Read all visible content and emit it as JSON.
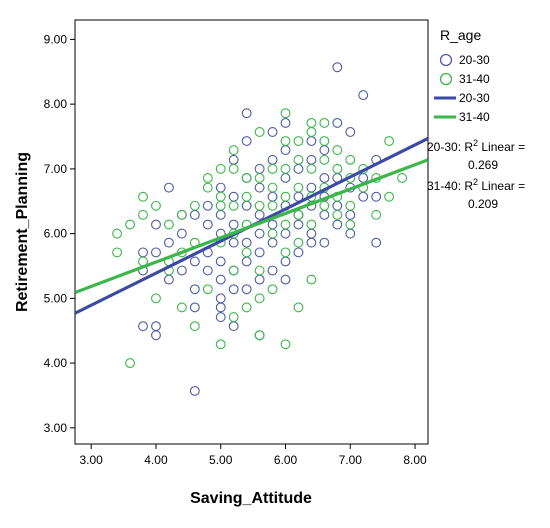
{
  "chart_data": {
    "type": "scatter",
    "xlabel": "Saving_Attitude",
    "ylabel": "Retirement_Planning",
    "xlim": [
      2.75,
      8.2
    ],
    "ylim": [
      2.75,
      9.3
    ],
    "xticks": [
      "3.00",
      "4.00",
      "5.00",
      "6.00",
      "7.00",
      "8.00"
    ],
    "yticks": [
      "3.00",
      "4.00",
      "5.00",
      "6.00",
      "7.00",
      "8.00",
      "9.00"
    ],
    "xtick_values": [
      3,
      4,
      5,
      6,
      7,
      8
    ],
    "ytick_values": [
      3,
      4,
      5,
      6,
      7,
      8,
      9
    ],
    "grid": false,
    "legend_position": "right",
    "legend": {
      "title": "R_age",
      "entries": [
        {
          "label": "20-30",
          "kind": "marker",
          "color": "#4e5ba6"
        },
        {
          "label": "31-40",
          "kind": "marker",
          "color": "#3cb64a"
        },
        {
          "label": "20-30",
          "kind": "line",
          "color": "#3d4aa3"
        },
        {
          "label": "31-40",
          "kind": "line",
          "color": "#3cb64a"
        }
      ],
      "annotations": [
        {
          "group": "20-30",
          "prefix": "20-30: R",
          "sup": "2",
          "suffix": " Linear =",
          "value": "0.269"
        },
        {
          "group": "31-40",
          "prefix": "31-40: R",
          "sup": "2",
          "suffix": " Linear =",
          "value": "0.209"
        }
      ]
    },
    "series": [
      {
        "name": "20-30",
        "color": "#4e5ba6",
        "marker": "open-circle",
        "points": [
          [
            3.8,
            5.43
          ],
          [
            3.8,
            4.57
          ],
          [
            3.8,
            5.71
          ],
          [
            4.0,
            4.43
          ],
          [
            4.0,
            4.57
          ],
          [
            4.0,
            5.71
          ],
          [
            4.0,
            6.14
          ],
          [
            4.2,
            5.29
          ],
          [
            4.2,
            5.86
          ],
          [
            4.2,
            6.71
          ],
          [
            4.4,
            5.43
          ],
          [
            4.4,
            6.0
          ],
          [
            4.4,
            6.29
          ],
          [
            4.6,
            4.86
          ],
          [
            4.6,
            5.14
          ],
          [
            4.6,
            5.57
          ],
          [
            4.6,
            6.29
          ],
          [
            4.6,
            3.57
          ],
          [
            4.8,
            5.43
          ],
          [
            4.8,
            5.71
          ],
          [
            4.8,
            6.14
          ],
          [
            4.8,
            6.43
          ],
          [
            5.0,
            4.71
          ],
          [
            5.0,
            5.0
          ],
          [
            5.0,
            5.29
          ],
          [
            5.0,
            5.57
          ],
          [
            5.0,
            6.0
          ],
          [
            5.0,
            6.29
          ],
          [
            5.0,
            6.71
          ],
          [
            5.0,
            4.86
          ],
          [
            5.2,
            5.14
          ],
          [
            5.2,
            5.43
          ],
          [
            5.2,
            5.86
          ],
          [
            5.2,
            6.14
          ],
          [
            5.2,
            6.57
          ],
          [
            5.2,
            7.14
          ],
          [
            5.2,
            4.57
          ],
          [
            5.4,
            5.57
          ],
          [
            5.4,
            5.86
          ],
          [
            5.4,
            6.43
          ],
          [
            5.4,
            7.43
          ],
          [
            5.4,
            7.86
          ],
          [
            5.4,
            5.14
          ],
          [
            5.4,
            6.86
          ],
          [
            5.6,
            4.43
          ],
          [
            5.6,
            5.29
          ],
          [
            5.6,
            6.0
          ],
          [
            5.6,
            6.29
          ],
          [
            5.6,
            6.71
          ],
          [
            5.6,
            7.0
          ],
          [
            5.6,
            5.71
          ],
          [
            5.8,
            5.43
          ],
          [
            5.8,
            6.14
          ],
          [
            5.8,
            6.57
          ],
          [
            5.8,
            7.14
          ],
          [
            5.8,
            7.57
          ],
          [
            5.8,
            5.86
          ],
          [
            6.0,
            5.57
          ],
          [
            6.0,
            6.0
          ],
          [
            6.0,
            6.43
          ],
          [
            6.0,
            6.86
          ],
          [
            6.0,
            7.29
          ],
          [
            6.0,
            7.71
          ],
          [
            6.0,
            5.29
          ],
          [
            6.2,
            5.71
          ],
          [
            6.2,
            6.14
          ],
          [
            6.2,
            6.57
          ],
          [
            6.2,
            7.0
          ],
          [
            6.2,
            6.29
          ],
          [
            6.4,
            6.0
          ],
          [
            6.4,
            6.43
          ],
          [
            6.4,
            6.71
          ],
          [
            6.4,
            7.14
          ],
          [
            6.4,
            7.43
          ],
          [
            6.4,
            5.86
          ],
          [
            6.6,
            5.86
          ],
          [
            6.6,
            6.29
          ],
          [
            6.6,
            6.57
          ],
          [
            6.6,
            6.86
          ],
          [
            6.6,
            7.29
          ],
          [
            6.8,
            6.14
          ],
          [
            6.8,
            6.43
          ],
          [
            6.8,
            6.86
          ],
          [
            6.8,
            7.71
          ],
          [
            6.8,
            8.57
          ],
          [
            7.0,
            6.0
          ],
          [
            7.0,
            6.71
          ],
          [
            7.0,
            7.57
          ],
          [
            7.0,
            6.29
          ],
          [
            7.2,
            6.57
          ],
          [
            7.2,
            8.14
          ],
          [
            7.2,
            6.86
          ],
          [
            7.4,
            5.86
          ],
          [
            7.4,
            6.57
          ],
          [
            7.4,
            7.14
          ]
        ]
      },
      {
        "name": "31-40",
        "color": "#3cb64a",
        "marker": "open-circle",
        "points": [
          [
            3.4,
            5.71
          ],
          [
            3.6,
            4.0
          ],
          [
            3.6,
            6.14
          ],
          [
            3.8,
            6.57
          ],
          [
            3.8,
            6.29
          ],
          [
            3.8,
            5.57
          ],
          [
            4.0,
            6.43
          ],
          [
            4.0,
            5.0
          ],
          [
            4.2,
            5.43
          ],
          [
            4.2,
            6.14
          ],
          [
            4.4,
            5.71
          ],
          [
            4.4,
            4.86
          ],
          [
            4.6,
            4.57
          ],
          [
            4.6,
            5.86
          ],
          [
            4.6,
            6.43
          ],
          [
            4.8,
            6.71
          ],
          [
            4.8,
            5.14
          ],
          [
            4.8,
            6.86
          ],
          [
            5.0,
            7.0
          ],
          [
            5.0,
            6.57
          ],
          [
            5.0,
            5.86
          ],
          [
            5.0,
            4.29
          ],
          [
            5.0,
            6.43
          ],
          [
            5.2,
            7.29
          ],
          [
            5.2,
            6.43
          ],
          [
            5.2,
            6.0
          ],
          [
            5.2,
            4.71
          ],
          [
            5.2,
            7.0
          ],
          [
            5.4,
            6.57
          ],
          [
            5.4,
            5.71
          ],
          [
            5.4,
            6.14
          ],
          [
            5.4,
            4.86
          ],
          [
            5.4,
            6.86
          ],
          [
            5.6,
            6.86
          ],
          [
            5.6,
            6.43
          ],
          [
            5.6,
            5.43
          ],
          [
            5.6,
            5.0
          ],
          [
            5.6,
            4.43
          ],
          [
            5.8,
            6.71
          ],
          [
            5.8,
            6.43
          ],
          [
            5.8,
            6.0
          ],
          [
            5.8,
            5.14
          ],
          [
            5.8,
            7.0
          ],
          [
            6.0,
            7.43
          ],
          [
            6.0,
            7.0
          ],
          [
            6.0,
            6.57
          ],
          [
            6.0,
            6.14
          ],
          [
            6.0,
            5.71
          ],
          [
            6.0,
            4.29
          ],
          [
            6.0,
            7.86
          ],
          [
            6.2,
            7.14
          ],
          [
            6.2,
            6.71
          ],
          [
            6.2,
            6.29
          ],
          [
            6.2,
            5.86
          ],
          [
            6.2,
            7.43
          ],
          [
            6.4,
            7.57
          ],
          [
            6.4,
            7.0
          ],
          [
            6.4,
            6.57
          ],
          [
            6.4,
            6.14
          ],
          [
            6.4,
            5.29
          ],
          [
            6.4,
            7.71
          ],
          [
            6.6,
            7.43
          ],
          [
            6.6,
            7.14
          ],
          [
            6.6,
            6.71
          ],
          [
            6.6,
            6.43
          ],
          [
            6.6,
            7.71
          ],
          [
            6.8,
            7.0
          ],
          [
            6.8,
            6.57
          ],
          [
            6.8,
            6.29
          ],
          [
            6.8,
            7.29
          ],
          [
            7.0,
            7.14
          ],
          [
            7.0,
            6.86
          ],
          [
            7.0,
            6.43
          ],
          [
            7.0,
            6.14
          ],
          [
            7.2,
            7.0
          ],
          [
            7.2,
            6.71
          ],
          [
            7.4,
            6.29
          ],
          [
            7.4,
            6.86
          ],
          [
            7.6,
            7.43
          ],
          [
            7.6,
            6.57
          ],
          [
            7.8,
            6.86
          ],
          [
            3.4,
            6.0
          ],
          [
            4.2,
            5.57
          ],
          [
            5.2,
            5.43
          ],
          [
            5.6,
            7.57
          ],
          [
            6.2,
            4.86
          ],
          [
            4.4,
            6.29
          ]
        ]
      }
    ],
    "fit_lines": [
      {
        "name": "20-30",
        "color": "#3d4aa3",
        "x": [
          2.75,
          8.2
        ],
        "y": [
          4.77,
          7.47
        ]
      },
      {
        "name": "31-40",
        "color": "#3cb64a",
        "x": [
          2.75,
          8.2
        ],
        "y": [
          5.09,
          7.14
        ]
      }
    ]
  }
}
